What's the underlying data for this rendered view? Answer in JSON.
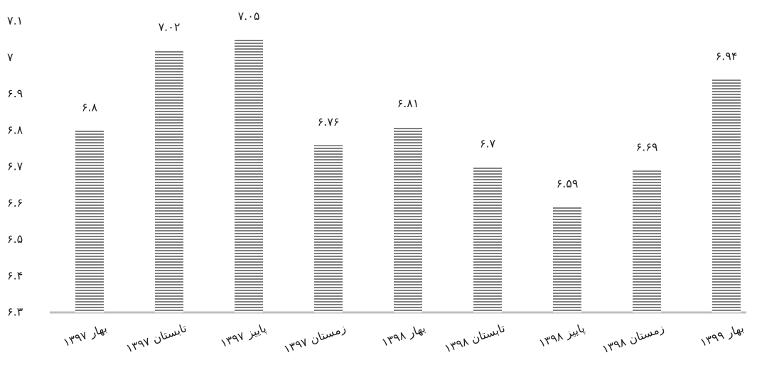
{
  "chart_data": {
    "type": "bar",
    "categories": [
      "بهار ۱۳۹۷",
      "تابستان ۱۳۹۷",
      "پاییز ۱۳۹۷",
      "زمستان ۱۳۹۷",
      "بهار ۱۳۹۸",
      "تابستان ۱۳۹۸",
      "پاییز ۱۳۹۸",
      "زمستان ۱۳۹۸",
      "بهار ۱۳۹۹"
    ],
    "values": [
      6.8,
      7.02,
      7.05,
      6.76,
      6.81,
      6.7,
      6.59,
      6.69,
      6.94
    ],
    "value_labels": [
      "۶.۸",
      "۷.۰۲",
      "۷.۰۵",
      "۶.۷۶",
      "۶.۸۱",
      "۶.۷",
      "۶.۵۹",
      "۶.۶۹",
      "۶.۹۴"
    ],
    "color": "#7f7f7f",
    "ylim": [
      6.3,
      7.1
    ],
    "yticks": [
      {
        "value": 6.3,
        "label": "۶.۳"
      },
      {
        "value": 6.4,
        "label": "۶.۴"
      },
      {
        "value": 6.5,
        "label": "۶.۵"
      },
      {
        "value": 6.6,
        "label": "۶.۶"
      },
      {
        "value": 6.7,
        "label": "۶.۷"
      },
      {
        "value": 6.8,
        "label": "۶.۸"
      },
      {
        "value": 6.9,
        "label": "۶.۹"
      },
      {
        "value": 7,
        "label": "۷"
      },
      {
        "value": 7.1,
        "label": "۷.۱"
      }
    ],
    "grid": false
  }
}
